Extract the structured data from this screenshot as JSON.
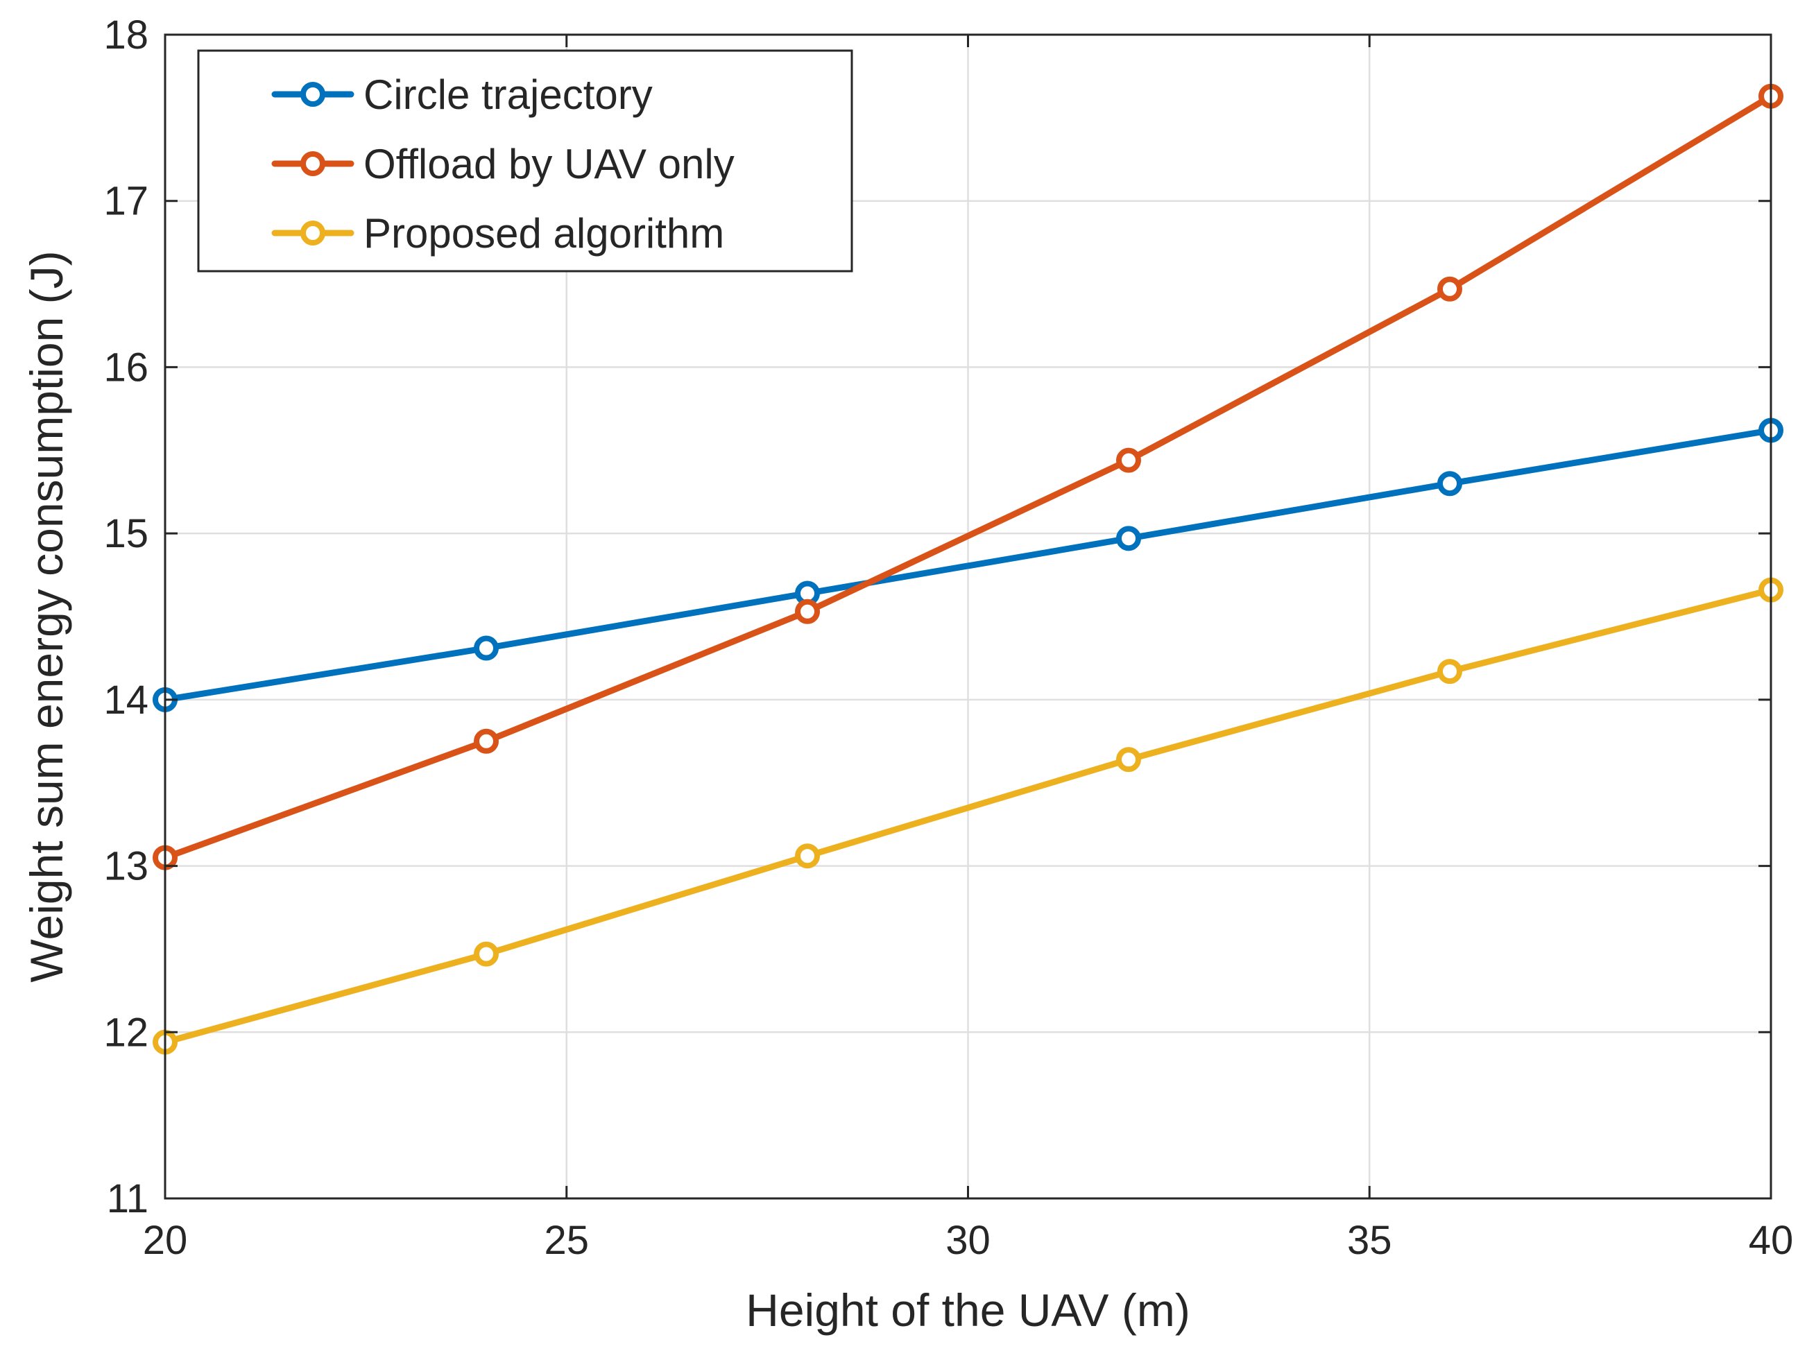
{
  "chart_data": {
    "type": "line",
    "title": "",
    "xlabel": "Height of the UAV (m)",
    "ylabel": "Weight sum energy consumption (J)",
    "xlim": [
      20,
      40
    ],
    "ylim": [
      11,
      18
    ],
    "xticks": [
      20,
      25,
      30,
      35,
      40
    ],
    "yticks": [
      11,
      12,
      13,
      14,
      15,
      16,
      17,
      18
    ],
    "xtick_labels": [
      "20",
      "25",
      "30",
      "35",
      "40"
    ],
    "ytick_labels": [
      "11",
      "12",
      "13",
      "14",
      "15",
      "16",
      "17",
      "18"
    ],
    "grid": true,
    "legend_position": "top-left",
    "x": [
      20,
      24,
      28,
      32,
      36,
      40
    ],
    "series": [
      {
        "name": "Circle trajectory",
        "color": "#0072BD",
        "marker": "circle",
        "values": [
          14.0,
          14.31,
          14.64,
          14.97,
          15.3,
          15.62
        ]
      },
      {
        "name": "Offload by UAV only",
        "color": "#D95319",
        "marker": "circle",
        "values": [
          13.05,
          13.75,
          14.53,
          15.44,
          16.47,
          17.63
        ]
      },
      {
        "name": "Proposed algorithm",
        "color": "#EDB120",
        "marker": "circle",
        "values": [
          11.94,
          12.47,
          13.06,
          13.64,
          14.17,
          14.66
        ]
      }
    ]
  }
}
